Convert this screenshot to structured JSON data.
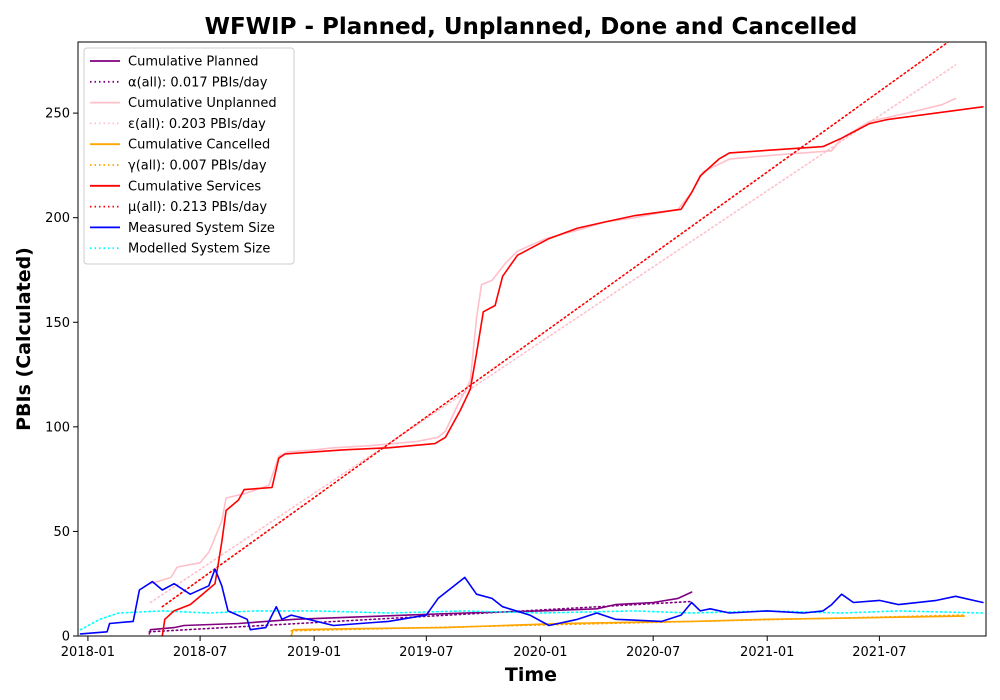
{
  "chart_data": {
    "type": "line",
    "title": "WFWIP - Planned, Unplanned, Done  and Cancelled",
    "xlabel": "Time",
    "ylabel": "PBIs (Calculated)",
    "xlim": [
      "2017-12-16",
      "2021-12-20"
    ],
    "ylim": [
      0,
      284
    ],
    "x_ticks": [
      "2018-01",
      "2018-07",
      "2019-01",
      "2019-07",
      "2020-01",
      "2020-07",
      "2021-01",
      "2021-07"
    ],
    "y_ticks": [
      0,
      50,
      100,
      150,
      200,
      250
    ],
    "grid": false,
    "legend_position": "top-left",
    "series": [
      {
        "name": "Cumulative Planned",
        "color": "#800080",
        "style": "solid",
        "points": [
          [
            "2018-04-10",
            1
          ],
          [
            "2018-04-12",
            3
          ],
          [
            "2018-05-20",
            4
          ],
          [
            "2018-06-05",
            5
          ],
          [
            "2018-09-01",
            6
          ],
          [
            "2018-12-01",
            8
          ],
          [
            "2019-03-01",
            9
          ],
          [
            "2019-06-01",
            10
          ],
          [
            "2019-09-01",
            11
          ],
          [
            "2020-01-01",
            12
          ],
          [
            "2020-04-01",
            13
          ],
          [
            "2020-05-01",
            15
          ],
          [
            "2020-07-01",
            16
          ],
          [
            "2020-08-10",
            18
          ],
          [
            "2020-09-01",
            21
          ]
        ]
      },
      {
        "name": "α(all): 0.017 PBIs/day",
        "color": "#800080",
        "style": "dotted",
        "points": [
          [
            "2018-04-10",
            2
          ],
          [
            "2020-09-01",
            16.5
          ]
        ]
      },
      {
        "name": "Cumulative Unplanned",
        "color": "#ffc0cb",
        "style": "solid",
        "points": [
          [
            "2018-04-12",
            25
          ],
          [
            "2018-05-15",
            28
          ],
          [
            "2018-05-25",
            33
          ],
          [
            "2018-07-01",
            35
          ],
          [
            "2018-07-15",
            40
          ],
          [
            "2018-08-05",
            55
          ],
          [
            "2018-08-12",
            66
          ],
          [
            "2018-09-10",
            68
          ],
          [
            "2018-10-20",
            72
          ],
          [
            "2018-11-05",
            86
          ],
          [
            "2018-11-20",
            88
          ],
          [
            "2019-01-01",
            89
          ],
          [
            "2019-02-01",
            90
          ],
          [
            "2019-04-01",
            91
          ],
          [
            "2019-06-15",
            93
          ],
          [
            "2019-07-20",
            95
          ],
          [
            "2019-08-01",
            98
          ],
          [
            "2019-08-20",
            110
          ],
          [
            "2019-09-10",
            122
          ],
          [
            "2019-09-20",
            152
          ],
          [
            "2019-09-28",
            168
          ],
          [
            "2019-10-15",
            170
          ],
          [
            "2019-11-05",
            178
          ],
          [
            "2019-11-25",
            184
          ],
          [
            "2020-01-10",
            190
          ],
          [
            "2020-03-01",
            194
          ],
          [
            "2020-04-15",
            198
          ],
          [
            "2020-06-01",
            200
          ],
          [
            "2020-08-10",
            204
          ],
          [
            "2020-09-01",
            212
          ],
          [
            "2020-09-20",
            222
          ],
          [
            "2020-11-01",
            228
          ],
          [
            "2021-01-15",
            230
          ],
          [
            "2021-04-15",
            232
          ],
          [
            "2021-05-01",
            238
          ],
          [
            "2021-06-15",
            246
          ],
          [
            "2021-08-15",
            250
          ],
          [
            "2021-10-10",
            254
          ],
          [
            "2021-11-01",
            257
          ]
        ]
      },
      {
        "name": "ε(all): 0.203 PBIs/day",
        "color": "#ffc0cb",
        "style": "dotted",
        "points": [
          [
            "2018-04-12",
            16
          ],
          [
            "2021-11-01",
            273
          ]
        ]
      },
      {
        "name": "Cumulative Cancelled",
        "color": "#ffa500",
        "style": "solid",
        "points": [
          [
            "2018-11-25",
            0
          ],
          [
            "2018-11-28",
            3
          ],
          [
            "2019-03-01",
            3.5
          ],
          [
            "2019-08-01",
            4
          ],
          [
            "2019-11-01",
            5
          ],
          [
            "2020-02-01",
            6
          ],
          [
            "2020-05-15",
            6.5
          ],
          [
            "2020-09-01",
            7
          ],
          [
            "2021-01-01",
            8
          ],
          [
            "2021-05-01",
            8.5
          ],
          [
            "2021-08-01",
            9
          ],
          [
            "2021-11-15",
            9.5
          ]
        ]
      },
      {
        "name": "γ(all): 0.007 PBIs/day",
        "color": "#ffa500",
        "style": "dotted",
        "points": [
          [
            "2018-11-25",
            2.5
          ],
          [
            "2021-11-15",
            10
          ]
        ]
      },
      {
        "name": "Cumulative Services",
        "color": "#ff0000",
        "style": "solid",
        "points": [
          [
            "2018-05-01",
            0
          ],
          [
            "2018-05-05",
            8
          ],
          [
            "2018-05-20",
            12
          ],
          [
            "2018-06-15",
            15
          ],
          [
            "2018-07-05",
            20
          ],
          [
            "2018-07-25",
            25
          ],
          [
            "2018-08-05",
            45
          ],
          [
            "2018-08-12",
            60
          ],
          [
            "2018-09-01",
            65
          ],
          [
            "2018-09-10",
            70
          ],
          [
            "2018-10-25",
            71
          ],
          [
            "2018-11-05",
            85
          ],
          [
            "2018-11-15",
            87
          ],
          [
            "2019-01-01",
            88
          ],
          [
            "2019-02-15",
            89
          ],
          [
            "2019-05-01",
            90
          ],
          [
            "2019-07-15",
            92
          ],
          [
            "2019-08-01",
            95
          ],
          [
            "2019-08-25",
            108
          ],
          [
            "2019-09-10",
            118
          ],
          [
            "2019-09-20",
            135
          ],
          [
            "2019-10-01",
            155
          ],
          [
            "2019-10-20",
            158
          ],
          [
            "2019-11-01",
            172
          ],
          [
            "2019-11-25",
            182
          ],
          [
            "2020-01-15",
            190
          ],
          [
            "2020-03-01",
            195
          ],
          [
            "2020-04-15",
            198
          ],
          [
            "2020-06-01",
            201
          ],
          [
            "2020-08-15",
            204
          ],
          [
            "2020-09-01",
            212
          ],
          [
            "2020-09-15",
            220
          ],
          [
            "2020-10-15",
            228
          ],
          [
            "2020-11-01",
            231
          ],
          [
            "2021-04-01",
            234
          ],
          [
            "2021-05-01",
            238
          ],
          [
            "2021-06-15",
            245
          ],
          [
            "2021-07-15",
            247
          ],
          [
            "2021-12-15",
            253
          ]
        ]
      },
      {
        "name": "μ(all): 0.213 PBIs/day",
        "color": "#ff0000",
        "style": "dotted",
        "points": [
          [
            "2018-05-01",
            14
          ],
          [
            "2021-10-20",
            284
          ]
        ]
      },
      {
        "name": "Measured System Size",
        "color": "#0000ff",
        "style": "solid",
        "points": [
          [
            "2017-12-20",
            1
          ],
          [
            "2018-02-01",
            2
          ],
          [
            "2018-02-05",
            6
          ],
          [
            "2018-03-15",
            7
          ],
          [
            "2018-03-25",
            22
          ],
          [
            "2018-04-15",
            26
          ],
          [
            "2018-05-01",
            22
          ],
          [
            "2018-05-20",
            25
          ],
          [
            "2018-06-15",
            20
          ],
          [
            "2018-07-15",
            24
          ],
          [
            "2018-07-25",
            32
          ],
          [
            "2018-08-05",
            24
          ],
          [
            "2018-08-15",
            12
          ],
          [
            "2018-09-15",
            8
          ],
          [
            "2018-09-20",
            3
          ],
          [
            "2018-10-15",
            4
          ],
          [
            "2018-10-25",
            10
          ],
          [
            "2018-11-01",
            14
          ],
          [
            "2018-11-10",
            8
          ],
          [
            "2018-11-25",
            10
          ],
          [
            "2019-02-01",
            5
          ],
          [
            "2019-05-01",
            7
          ],
          [
            "2019-07-01",
            10
          ],
          [
            "2019-07-20",
            18
          ],
          [
            "2019-08-15",
            24
          ],
          [
            "2019-09-01",
            28
          ],
          [
            "2019-09-20",
            20
          ],
          [
            "2019-10-15",
            18
          ],
          [
            "2019-11-01",
            14
          ],
          [
            "2019-12-15",
            10
          ],
          [
            "2020-01-15",
            5
          ],
          [
            "2020-03-01",
            8
          ],
          [
            "2020-04-01",
            11
          ],
          [
            "2020-05-01",
            8
          ],
          [
            "2020-07-15",
            7
          ],
          [
            "2020-08-15",
            10
          ],
          [
            "2020-09-01",
            16
          ],
          [
            "2020-09-15",
            12
          ],
          [
            "2020-10-01",
            13
          ],
          [
            "2020-11-01",
            11
          ],
          [
            "2021-01-01",
            12
          ],
          [
            "2021-03-01",
            11
          ],
          [
            "2021-04-01",
            12
          ],
          [
            "2021-04-15",
            15
          ],
          [
            "2021-05-01",
            20
          ],
          [
            "2021-05-20",
            16
          ],
          [
            "2021-07-01",
            17
          ],
          [
            "2021-08-01",
            15
          ],
          [
            "2021-10-01",
            17
          ],
          [
            "2021-11-01",
            19
          ],
          [
            "2021-12-15",
            16
          ]
        ]
      },
      {
        "name": "Modelled System Size",
        "color": "#00ffff",
        "style": "dotted",
        "points": [
          [
            "2017-12-20",
            3
          ],
          [
            "2018-01-20",
            8
          ],
          [
            "2018-02-20",
            11
          ],
          [
            "2018-05-01",
            12
          ],
          [
            "2018-07-15",
            11
          ],
          [
            "2018-10-01",
            12
          ],
          [
            "2019-01-01",
            12
          ],
          [
            "2019-05-01",
            11
          ],
          [
            "2019-09-01",
            12
          ],
          [
            "2020-01-01",
            11
          ],
          [
            "2020-06-01",
            12
          ],
          [
            "2020-09-01",
            11
          ],
          [
            "2021-01-01",
            12
          ],
          [
            "2021-05-01",
            11
          ],
          [
            "2021-08-01",
            12
          ],
          [
            "2021-12-15",
            11
          ]
        ]
      }
    ]
  }
}
